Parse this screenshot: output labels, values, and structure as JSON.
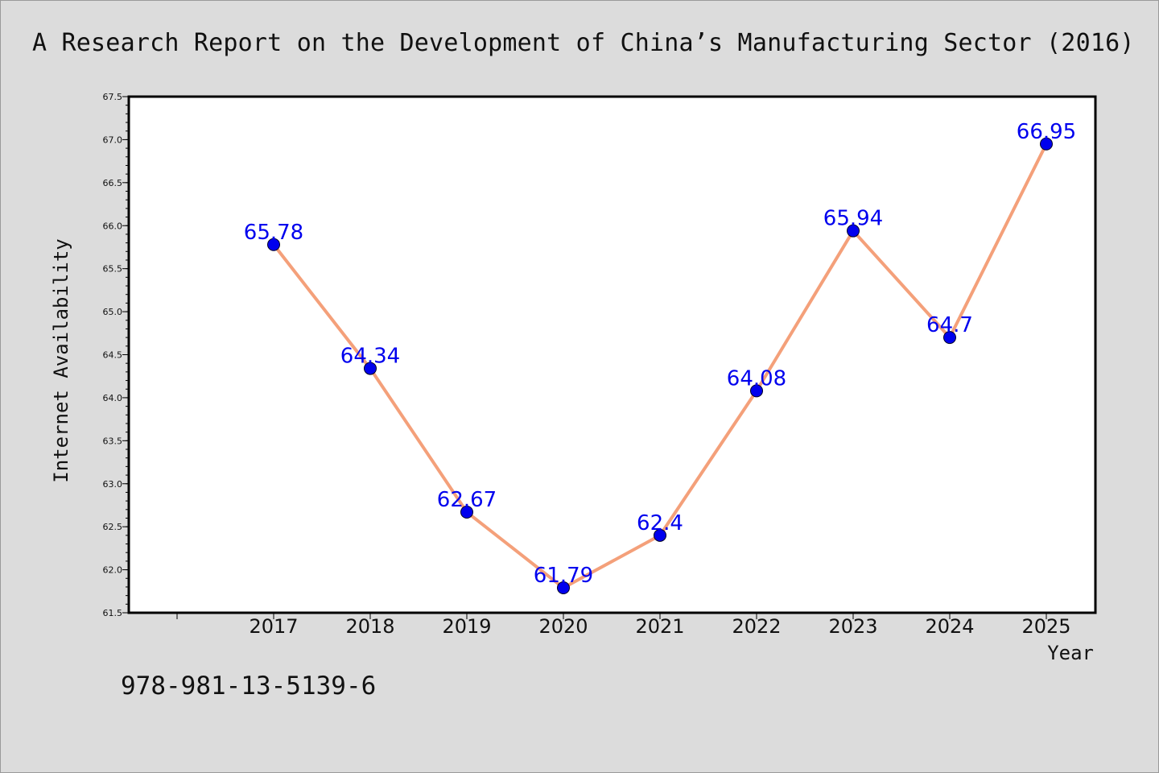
{
  "header": {
    "title": "A Research Report on the Development of China’s Manufacturing Sector (2016)"
  },
  "footer": {
    "isbn": "978-981-13-5139-6"
  },
  "colors": {
    "background": "#dcdcdc",
    "plot_background": "#ffffff",
    "line": "#f4a07a",
    "marker": "#0000ee",
    "data_label": "#0000ee"
  },
  "chart_data": {
    "type": "line",
    "title": "A Research Report on the Development of China’s Manufacturing Sector (2016)",
    "xlabel": "Year",
    "ylabel": "Internet Availability",
    "categories": [
      "2017",
      "2018",
      "2019",
      "2020",
      "2021",
      "2022",
      "2023",
      "2024",
      "2025"
    ],
    "values": [
      65.78,
      64.34,
      62.67,
      61.79,
      62.4,
      64.08,
      65.94,
      64.7,
      66.95
    ],
    "data_labels": [
      "65.78",
      "64.34",
      "62.67",
      "61.79",
      "62.4",
      "64.08",
      "65.94",
      "64.7",
      "66.95"
    ],
    "ylim": [
      61.5,
      67.5
    ],
    "yticks": [
      "61.5",
      "62.0",
      "62.5",
      "63.0",
      "63.5",
      "64.0",
      "64.5",
      "65.0",
      "65.5",
      "66.0",
      "66.5",
      "67.0",
      "67.5"
    ],
    "grid": false,
    "legend": "none",
    "marker": "circle"
  }
}
